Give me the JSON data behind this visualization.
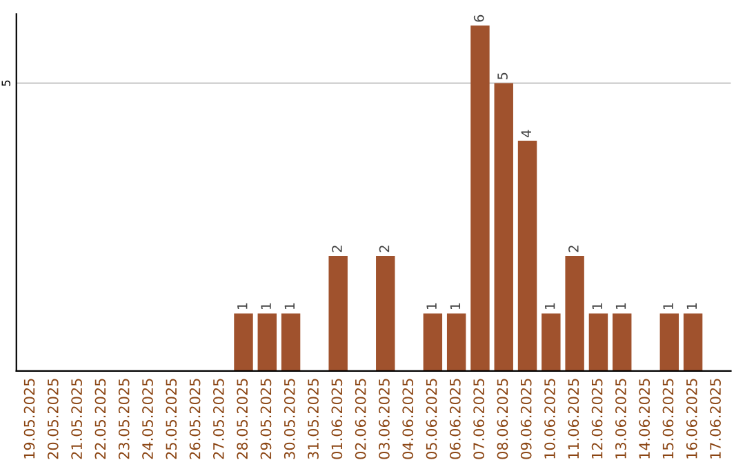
{
  "chart_data": {
    "type": "bar",
    "categories": [
      "19.05.2025",
      "20.05.2025",
      "21.05.2025",
      "22.05.2025",
      "23.05.2025",
      "24.05.2025",
      "25.05.2025",
      "26.05.2025",
      "27.05.2025",
      "28.05.2025",
      "29.05.2025",
      "30.05.2025",
      "31.05.2025",
      "01.06.2025",
      "02.06.2025",
      "03.06.2025",
      "04.06.2025",
      "05.06.2025",
      "06.06.2025",
      "07.06.2025",
      "08.06.2025",
      "09.06.2025",
      "10.06.2025",
      "11.06.2025",
      "12.06.2025",
      "13.06.2025",
      "14.06.2025",
      "15.06.2025",
      "16.06.2025",
      "17.06.2025"
    ],
    "values": [
      0,
      0,
      0,
      0,
      0,
      0,
      0,
      0,
      0,
      1,
      1,
      1,
      0,
      2,
      0,
      2,
      0,
      1,
      1,
      6,
      5,
      4,
      1,
      2,
      1,
      1,
      0,
      1,
      1,
      0
    ],
    "value_labels": [
      null,
      null,
      null,
      null,
      null,
      null,
      null,
      null,
      null,
      "1",
      "1",
      "1",
      null,
      "2",
      null,
      "2",
      null,
      "1",
      "1",
      "6",
      "5",
      "4",
      "1",
      "2",
      "1",
      "1",
      null,
      "1",
      "1",
      null
    ],
    "color": "#a0522d",
    "ylim": [
      0,
      6.2
    ],
    "yticks": [
      5
    ],
    "grid": "y"
  }
}
